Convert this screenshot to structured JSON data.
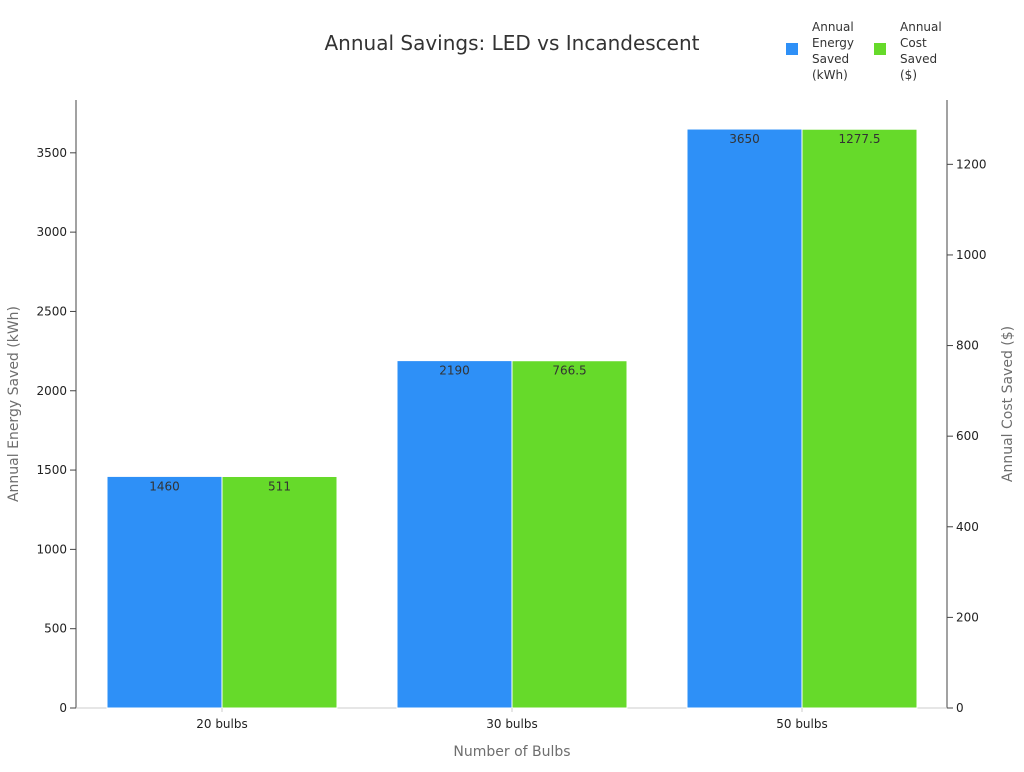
{
  "chart_data": {
    "type": "bar",
    "title": "Annual Savings: LED vs Incandescent",
    "xlabel": "Number of Bulbs",
    "categories": [
      "20 bulbs",
      "30 bulbs",
      "50 bulbs"
    ],
    "series": [
      {
        "name": "Annual Energy Saved (kWh)",
        "legend_lines": [
          "Annual",
          "Energy",
          "Saved",
          "(kWh)"
        ],
        "axis": "left",
        "color": "#2e90f7",
        "values": [
          1460,
          2190,
          3650
        ],
        "labels": [
          "1460",
          "2190",
          "3650"
        ]
      },
      {
        "name": "Annual Cost Saved ($)",
        "legend_lines": [
          "Annual",
          "Cost",
          "Saved",
          "($)"
        ],
        "axis": "right",
        "color": "#66da2a",
        "values": [
          511,
          766.5,
          1277.5
        ],
        "labels": [
          "511",
          "766.5",
          "1277.5"
        ]
      }
    ],
    "y_left": {
      "label": "Annual Energy Saved (kWh)",
      "range": [
        0,
        3833
      ],
      "ticks": [
        0,
        500,
        1000,
        1500,
        2000,
        2500,
        3000,
        3500
      ]
    },
    "y_right": {
      "label": "Annual Cost Saved ($)",
      "range": [
        0,
        1342
      ],
      "ticks": [
        0,
        200,
        400,
        600,
        800,
        1000,
        1200
      ]
    },
    "grid": false,
    "legend_position": "top-right"
  }
}
